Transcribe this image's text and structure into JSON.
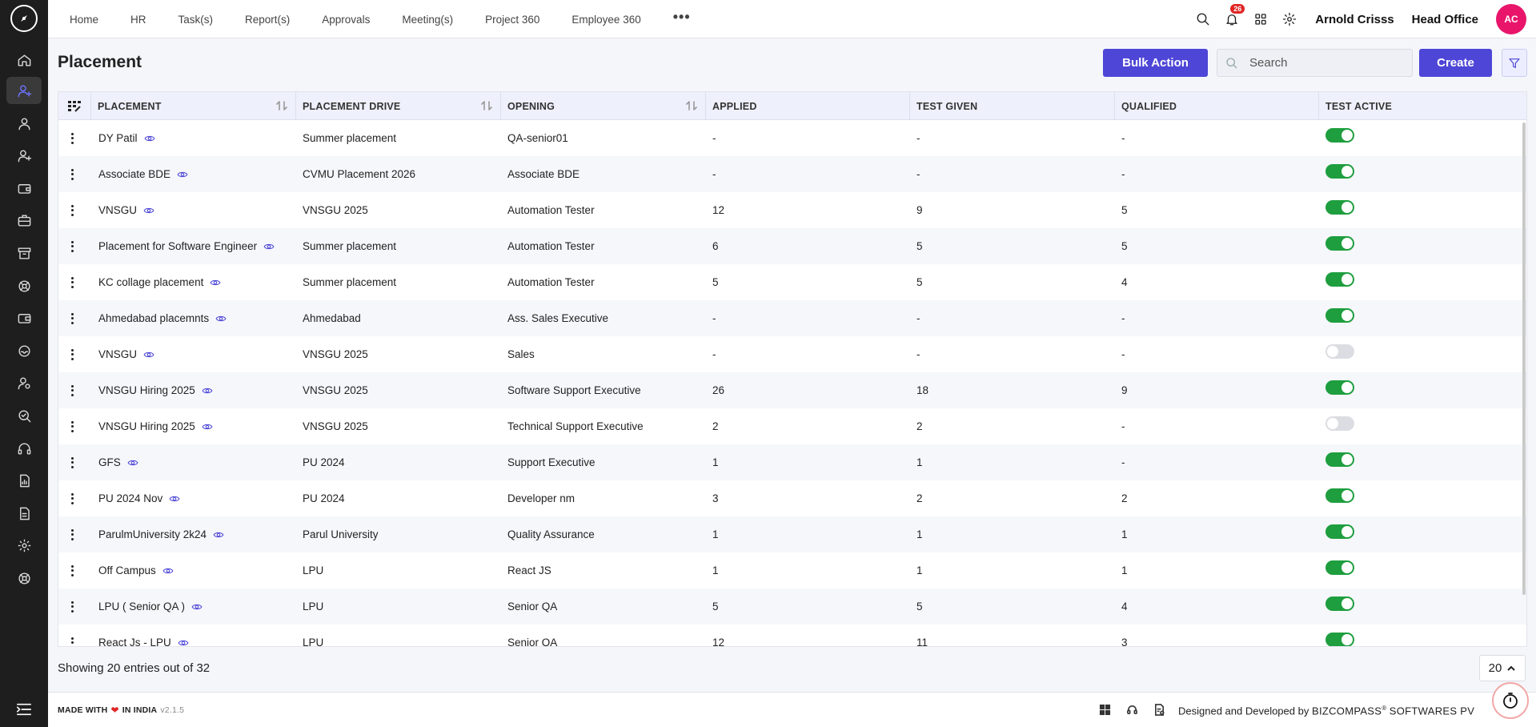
{
  "nav": {
    "items": [
      "Home",
      "HR",
      "Task(s)",
      "Report(s)",
      "Approvals",
      "Meeting(s)",
      "Project 360",
      "Employee 360"
    ]
  },
  "topbar": {
    "notification_count": "26",
    "user_name": "Arnold Crisss",
    "office": "Head Office",
    "avatar_initials": "AC"
  },
  "page": {
    "title": "Placement",
    "bulk_action_label": "Bulk Action",
    "search_placeholder": "Search",
    "create_label": "Create"
  },
  "table": {
    "columns": [
      "PLACEMENT",
      "PLACEMENT DRIVE",
      "OPENING",
      "APPLIED",
      "TEST GIVEN",
      "QUALIFIED",
      "TEST ACTIVE"
    ],
    "rows": [
      {
        "placement": "DY Patil",
        "drive": "Summer placement",
        "opening": "QA-senior01",
        "applied": "-",
        "test_given": "-",
        "qualified": "-",
        "test_active": true
      },
      {
        "placement": "Associate BDE",
        "drive": "CVMU Placement 2026",
        "opening": "Associate BDE",
        "applied": "-",
        "test_given": "-",
        "qualified": "-",
        "test_active": true
      },
      {
        "placement": "VNSGU",
        "drive": "VNSGU 2025",
        "opening": "Automation Tester",
        "applied": "12",
        "test_given": "9",
        "qualified": "5",
        "test_active": true
      },
      {
        "placement": "Placement for Software Engineer",
        "drive": "Summer placement",
        "opening": "Automation Tester",
        "applied": "6",
        "test_given": "5",
        "qualified": "5",
        "test_active": true
      },
      {
        "placement": "KC collage placement",
        "drive": "Summer placement",
        "opening": "Automation Tester",
        "applied": "5",
        "test_given": "5",
        "qualified": "4",
        "test_active": true
      },
      {
        "placement": "Ahmedabad placemnts",
        "drive": "Ahmedabad",
        "opening": "Ass. Sales Executive",
        "applied": "-",
        "test_given": "-",
        "qualified": "-",
        "test_active": true
      },
      {
        "placement": "VNSGU",
        "drive": "VNSGU 2025",
        "opening": "Sales",
        "applied": "-",
        "test_given": "-",
        "qualified": "-",
        "test_active": false
      },
      {
        "placement": "VNSGU Hiring 2025",
        "drive": "VNSGU 2025",
        "opening": "Software Support Executive",
        "applied": "26",
        "test_given": "18",
        "qualified": "9",
        "test_active": true
      },
      {
        "placement": "VNSGU Hiring 2025",
        "drive": "VNSGU 2025",
        "opening": "Technical Support Executive",
        "applied": "2",
        "test_given": "2",
        "qualified": "-",
        "test_active": false
      },
      {
        "placement": "GFS",
        "drive": "PU 2024",
        "opening": "Support Executive",
        "applied": "1",
        "test_given": "1",
        "qualified": "-",
        "test_active": true
      },
      {
        "placement": "PU 2024 Nov",
        "drive": "PU 2024",
        "opening": "Developer nm",
        "applied": "3",
        "test_given": "2",
        "qualified": "2",
        "test_active": true
      },
      {
        "placement": "ParulmUniversity 2k24",
        "drive": "Parul University",
        "opening": "Quality Assurance",
        "applied": "1",
        "test_given": "1",
        "qualified": "1",
        "test_active": true
      },
      {
        "placement": "Off Campus",
        "drive": "LPU",
        "opening": "React JS",
        "applied": "1",
        "test_given": "1",
        "qualified": "1",
        "test_active": true
      },
      {
        "placement": "LPU ( Senior QA )",
        "drive": "LPU",
        "opening": "Senior QA",
        "applied": "5",
        "test_given": "5",
        "qualified": "4",
        "test_active": true
      },
      {
        "placement": "React Js - LPU",
        "drive": "LPU",
        "opening": "Senior QA",
        "applied": "12",
        "test_given": "11",
        "qualified": "3",
        "test_active": true
      }
    ]
  },
  "pagination": {
    "showing_text": "Showing 20 entries out of 32",
    "page_size": "20"
  },
  "footer": {
    "made_prefix": "MADE WITH",
    "made_suffix": "IN INDIA",
    "version": "v2.1.5",
    "designed_prefix": "Designed and Developed by",
    "company": "BIZCOMPASS",
    "company_suffix": "SOFTWARES PV",
    "registered_mark": "®"
  },
  "colors": {
    "accent": "#4d46d6",
    "sidebar": "#1e1e1e",
    "toggle_on": "#1e9e3e",
    "avatar": "#e8156b",
    "badge": "#e02424"
  }
}
